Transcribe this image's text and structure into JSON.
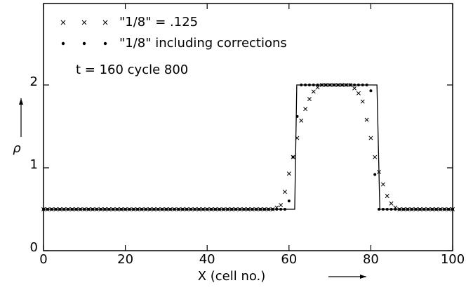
{
  "chart_data": {
    "type": "scatter",
    "annotation": "t = 160    cycle 800",
    "xlabel": "X (cell no.)",
    "ylabel": "ρ",
    "xlim": [
      0,
      100
    ],
    "xticks": [
      0,
      20,
      40,
      60,
      80,
      100
    ],
    "ylim": [
      0,
      3
    ],
    "yticks": [
      0,
      1,
      2
    ],
    "series": [
      {
        "style": "line",
        "color": "#000000",
        "x": [
          0,
          61.4,
          61.9,
          81.5,
          82.2,
          100
        ],
        "values": [
          0.5,
          0.5,
          2,
          2,
          0.5,
          0.5
        ]
      },
      {
        "name": "\"1/8\" = .125",
        "style": "cross",
        "color": "#000000",
        "x": [
          0,
          1,
          2,
          3,
          4,
          5,
          6,
          7,
          8,
          9,
          10,
          11,
          12,
          13,
          14,
          15,
          16,
          17,
          18,
          19,
          20,
          21,
          22,
          23,
          24,
          25,
          26,
          27,
          28,
          29,
          30,
          31,
          32,
          33,
          34,
          35,
          36,
          37,
          38,
          39,
          40,
          41,
          42,
          43,
          44,
          45,
          46,
          47,
          48,
          49,
          50,
          51,
          52,
          53,
          54,
          55,
          56,
          57,
          58,
          59,
          60,
          61,
          62,
          63,
          64,
          65,
          66,
          67,
          68,
          69,
          70,
          71,
          72,
          73,
          74,
          75,
          76,
          77,
          78,
          79,
          80,
          81,
          82,
          83,
          84,
          85,
          86,
          87,
          88,
          89,
          90,
          91,
          92,
          93,
          94,
          95,
          96,
          97,
          98,
          99,
          100
        ],
        "values": [
          0.5,
          0.5,
          0.5,
          0.5,
          0.5,
          0.5,
          0.5,
          0.5,
          0.5,
          0.5,
          0.5,
          0.5,
          0.5,
          0.5,
          0.5,
          0.5,
          0.5,
          0.5,
          0.5,
          0.5,
          0.5,
          0.5,
          0.5,
          0.5,
          0.5,
          0.5,
          0.5,
          0.5,
          0.5,
          0.5,
          0.5,
          0.5,
          0.5,
          0.5,
          0.5,
          0.5,
          0.5,
          0.5,
          0.5,
          0.5,
          0.5,
          0.5,
          0.5,
          0.5,
          0.5,
          0.5,
          0.5,
          0.5,
          0.5,
          0.5,
          0.5,
          0.5,
          0.5,
          0.5,
          0.5,
          0.5,
          0.5,
          0.52,
          0.55,
          0.71,
          0.93,
          1.13,
          1.36,
          1.57,
          1.71,
          1.83,
          1.92,
          1.97,
          2,
          2,
          2,
          2,
          2,
          2,
          2,
          2,
          1.96,
          1.9,
          1.8,
          1.58,
          1.36,
          1.13,
          0.95,
          0.8,
          0.66,
          0.57,
          0.52,
          0.5,
          0.5,
          0.5,
          0.5,
          0.5,
          0.5,
          0.5,
          0.5,
          0.5,
          0.5,
          0.5,
          0.5,
          0.5,
          0.5
        ]
      },
      {
        "name": "\"1/8\" including corrections",
        "style": "dot",
        "color": "#000000",
        "x": [
          0,
          1,
          2,
          3,
          4,
          5,
          6,
          7,
          8,
          9,
          10,
          11,
          12,
          13,
          14,
          15,
          16,
          17,
          18,
          19,
          20,
          21,
          22,
          23,
          24,
          25,
          26,
          27,
          28,
          29,
          30,
          31,
          32,
          33,
          34,
          35,
          36,
          37,
          38,
          39,
          40,
          41,
          42,
          43,
          44,
          45,
          46,
          47,
          48,
          49,
          50,
          51,
          52,
          53,
          54,
          55,
          56,
          57,
          58,
          59,
          60,
          61,
          62,
          63,
          64,
          65,
          66,
          67,
          68,
          69,
          70,
          71,
          72,
          73,
          74,
          75,
          76,
          77,
          78,
          79,
          80,
          81,
          82,
          83,
          84,
          85,
          86,
          87,
          88,
          89,
          90,
          91,
          92,
          93,
          94,
          95,
          96,
          97,
          98,
          99,
          100
        ],
        "values": [
          0.5,
          0.5,
          0.5,
          0.5,
          0.5,
          0.5,
          0.5,
          0.5,
          0.5,
          0.5,
          0.5,
          0.5,
          0.5,
          0.5,
          0.5,
          0.5,
          0.5,
          0.5,
          0.5,
          0.5,
          0.5,
          0.5,
          0.5,
          0.5,
          0.5,
          0.5,
          0.5,
          0.5,
          0.5,
          0.5,
          0.5,
          0.5,
          0.5,
          0.5,
          0.5,
          0.5,
          0.5,
          0.5,
          0.5,
          0.5,
          0.5,
          0.5,
          0.5,
          0.5,
          0.5,
          0.5,
          0.5,
          0.5,
          0.5,
          0.5,
          0.5,
          0.5,
          0.5,
          0.5,
          0.5,
          0.5,
          0.5,
          0.5,
          0.5,
          0.5,
          0.6,
          1.13,
          1.62,
          2,
          2,
          2,
          2,
          2,
          2,
          2,
          2,
          2,
          2,
          2,
          2,
          2,
          2,
          2,
          2,
          2,
          1.93,
          0.92,
          0.5,
          0.5,
          0.5,
          0.5,
          0.5,
          0.5,
          0.5,
          0.5,
          0.5,
          0.5,
          0.5,
          0.5,
          0.5,
          0.5,
          0.5,
          0.5,
          0.5,
          0.5,
          0.5
        ]
      }
    ]
  }
}
